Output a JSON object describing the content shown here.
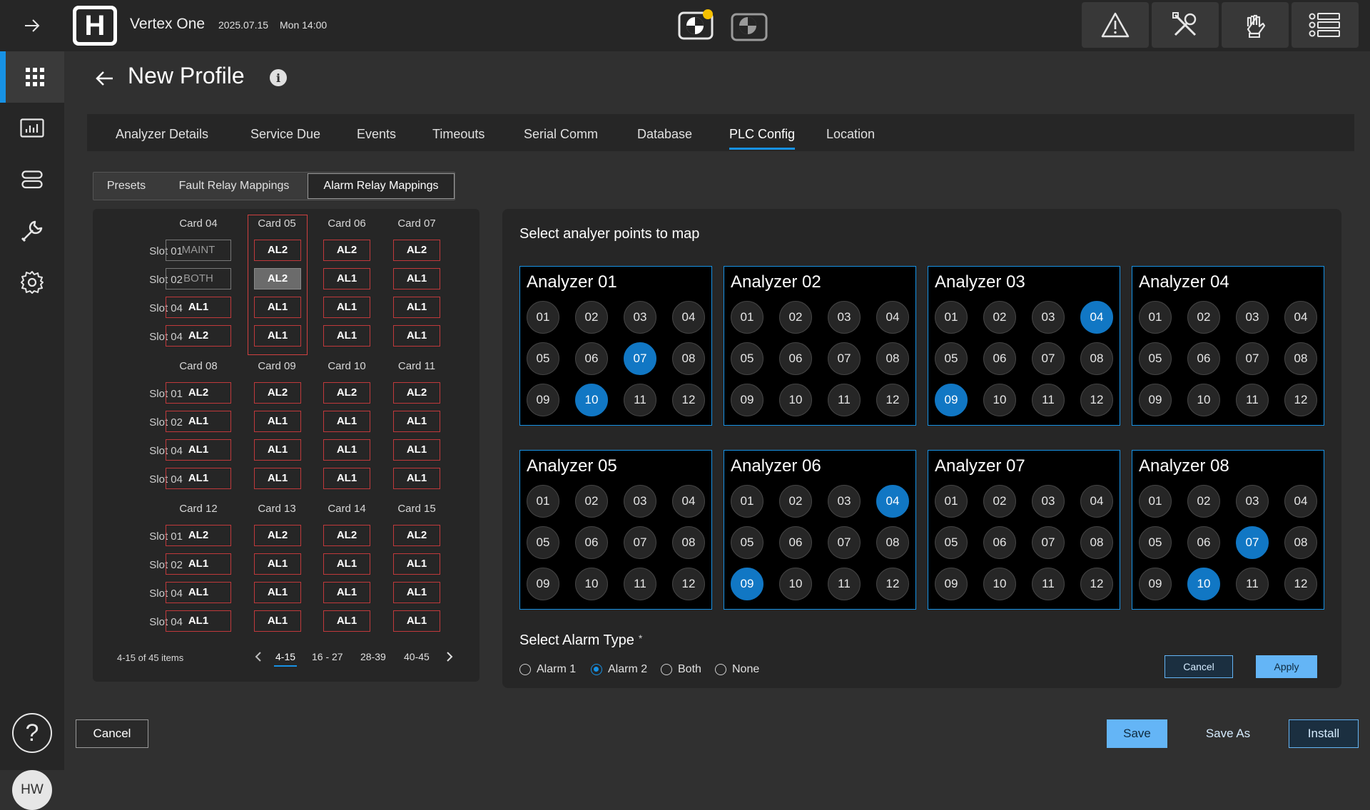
{
  "header": {
    "logo_letter": "H",
    "app_name": "Vertex One",
    "date": "2025.07.15",
    "time": "Mon 14:00"
  },
  "icons": {
    "expand": "arrow-right-icon",
    "status_primary": "status-with-notification-icon",
    "status_secondary": "status-icon",
    "alarm": "warning-icon",
    "tools": "tools-icon",
    "glove": "glove-icon",
    "menu": "list-menu-icon",
    "accent_color": "#1792e5",
    "notification_color": "#f5c000"
  },
  "sidebar": {
    "items": [
      {
        "name": "apps-grid",
        "icon": "grid-icon",
        "active": true
      },
      {
        "name": "dashboard",
        "icon": "chart-icon",
        "active": false
      },
      {
        "name": "devices",
        "icon": "server-icon",
        "active": false
      },
      {
        "name": "maintenance",
        "icon": "wrench-icon",
        "active": false
      },
      {
        "name": "settings",
        "icon": "gear-icon",
        "active": false
      }
    ],
    "help_label": "?",
    "avatar_initials": "HW"
  },
  "page": {
    "title": "New Profile",
    "info_label": "i"
  },
  "tabs": [
    {
      "label": "Analyzer  Details",
      "active": false
    },
    {
      "label": "Service Due",
      "active": false
    },
    {
      "label": "Events",
      "active": false
    },
    {
      "label": "Timeouts",
      "active": false
    },
    {
      "label": "Serial Comm",
      "active": false
    },
    {
      "label": "Database",
      "active": false
    },
    {
      "label": "PLC Config",
      "active": true
    },
    {
      "label": "Location",
      "active": false
    }
  ],
  "subtabs": [
    {
      "label": "Presets",
      "active": false
    },
    {
      "label": "Fault Relay Mappings",
      "active": false
    },
    {
      "label": "Alarm Relay Mappings",
      "active": true
    }
  ],
  "mapping": {
    "groups": [
      {
        "cards": [
          "Card 04",
          "Card 05",
          "Card 06",
          "Card 07"
        ],
        "slots": [
          "Slot 01",
          "Slot 02",
          "Slot 04",
          "Slot 04"
        ],
        "values": [
          [
            "MAINT",
            "AL2",
            "AL2",
            "AL2"
          ],
          [
            "BOTH",
            "AL2",
            "AL1",
            "AL1"
          ],
          [
            "AL1",
            "AL1",
            "AL1",
            "AL1"
          ],
          [
            "AL2",
            "AL1",
            "AL1",
            "AL1"
          ]
        ]
      },
      {
        "cards": [
          "Card 08",
          "Card 09",
          "Card 10",
          "Card 11"
        ],
        "slots": [
          "Slot 01",
          "Slot 02",
          "Slot 04",
          "Slot 04"
        ],
        "values": [
          [
            "AL2",
            "AL2",
            "AL2",
            "AL2"
          ],
          [
            "AL1",
            "AL1",
            "AL1",
            "AL1"
          ],
          [
            "AL1",
            "AL1",
            "AL1",
            "AL1"
          ],
          [
            "AL1",
            "AL1",
            "AL1",
            "AL1"
          ]
        ]
      },
      {
        "cards": [
          "Card 12",
          "Card 13",
          "Card 14",
          "Card 15"
        ],
        "slots": [
          "Slot 01",
          "Slot 02",
          "Slot 04",
          "Slot 04"
        ],
        "values": [
          [
            "AL2",
            "AL2",
            "AL2",
            "AL2"
          ],
          [
            "AL1",
            "AL1",
            "AL1",
            "AL1"
          ],
          [
            "AL1",
            "AL1",
            "AL1",
            "AL1"
          ],
          [
            "AL1",
            "AL1",
            "AL1",
            "AL1"
          ]
        ]
      }
    ],
    "inactive_cells": [
      "MAINT",
      "BOTH"
    ],
    "selected_cell": {
      "group": 0,
      "row": 1,
      "col": 1
    },
    "highlighted_column": "Card 05",
    "pagination": {
      "summary": "4-15 of 45 items",
      "pages": [
        "4-15",
        "16 - 27",
        "28-39",
        "40-45"
      ],
      "active_page": "4-15"
    }
  },
  "analyzers": {
    "title": "Select analyer points to map",
    "point_labels": [
      "01",
      "02",
      "03",
      "04",
      "05",
      "06",
      "07",
      "08",
      "09",
      "10",
      "11",
      "12"
    ],
    "items": [
      {
        "name": "Analyzer 01",
        "selected": [
          "07",
          "10"
        ]
      },
      {
        "name": "Analyzer 02",
        "selected": []
      },
      {
        "name": "Analyzer 03",
        "selected": [
          "04",
          "09"
        ]
      },
      {
        "name": "Analyzer 04",
        "selected": []
      },
      {
        "name": "Analyzer 05",
        "selected": []
      },
      {
        "name": "Analyzer 06",
        "selected": [
          "04",
          "09"
        ]
      },
      {
        "name": "Analyzer 07",
        "selected": []
      },
      {
        "name": "Analyzer 08",
        "selected": [
          "07",
          "10"
        ]
      }
    ]
  },
  "alarm_type": {
    "title": "Select Alarm Type",
    "required_mark": "*",
    "options": [
      "Alarm 1",
      "Alarm 2",
      "Both",
      "None"
    ],
    "selected": "Alarm 2"
  },
  "panel_actions": {
    "cancel_label": "Cancel",
    "apply_label": "Apply"
  },
  "footer": {
    "cancel_label": "Cancel",
    "save_label": "Save",
    "save_as_label": "Save As",
    "install_label": "Install"
  }
}
